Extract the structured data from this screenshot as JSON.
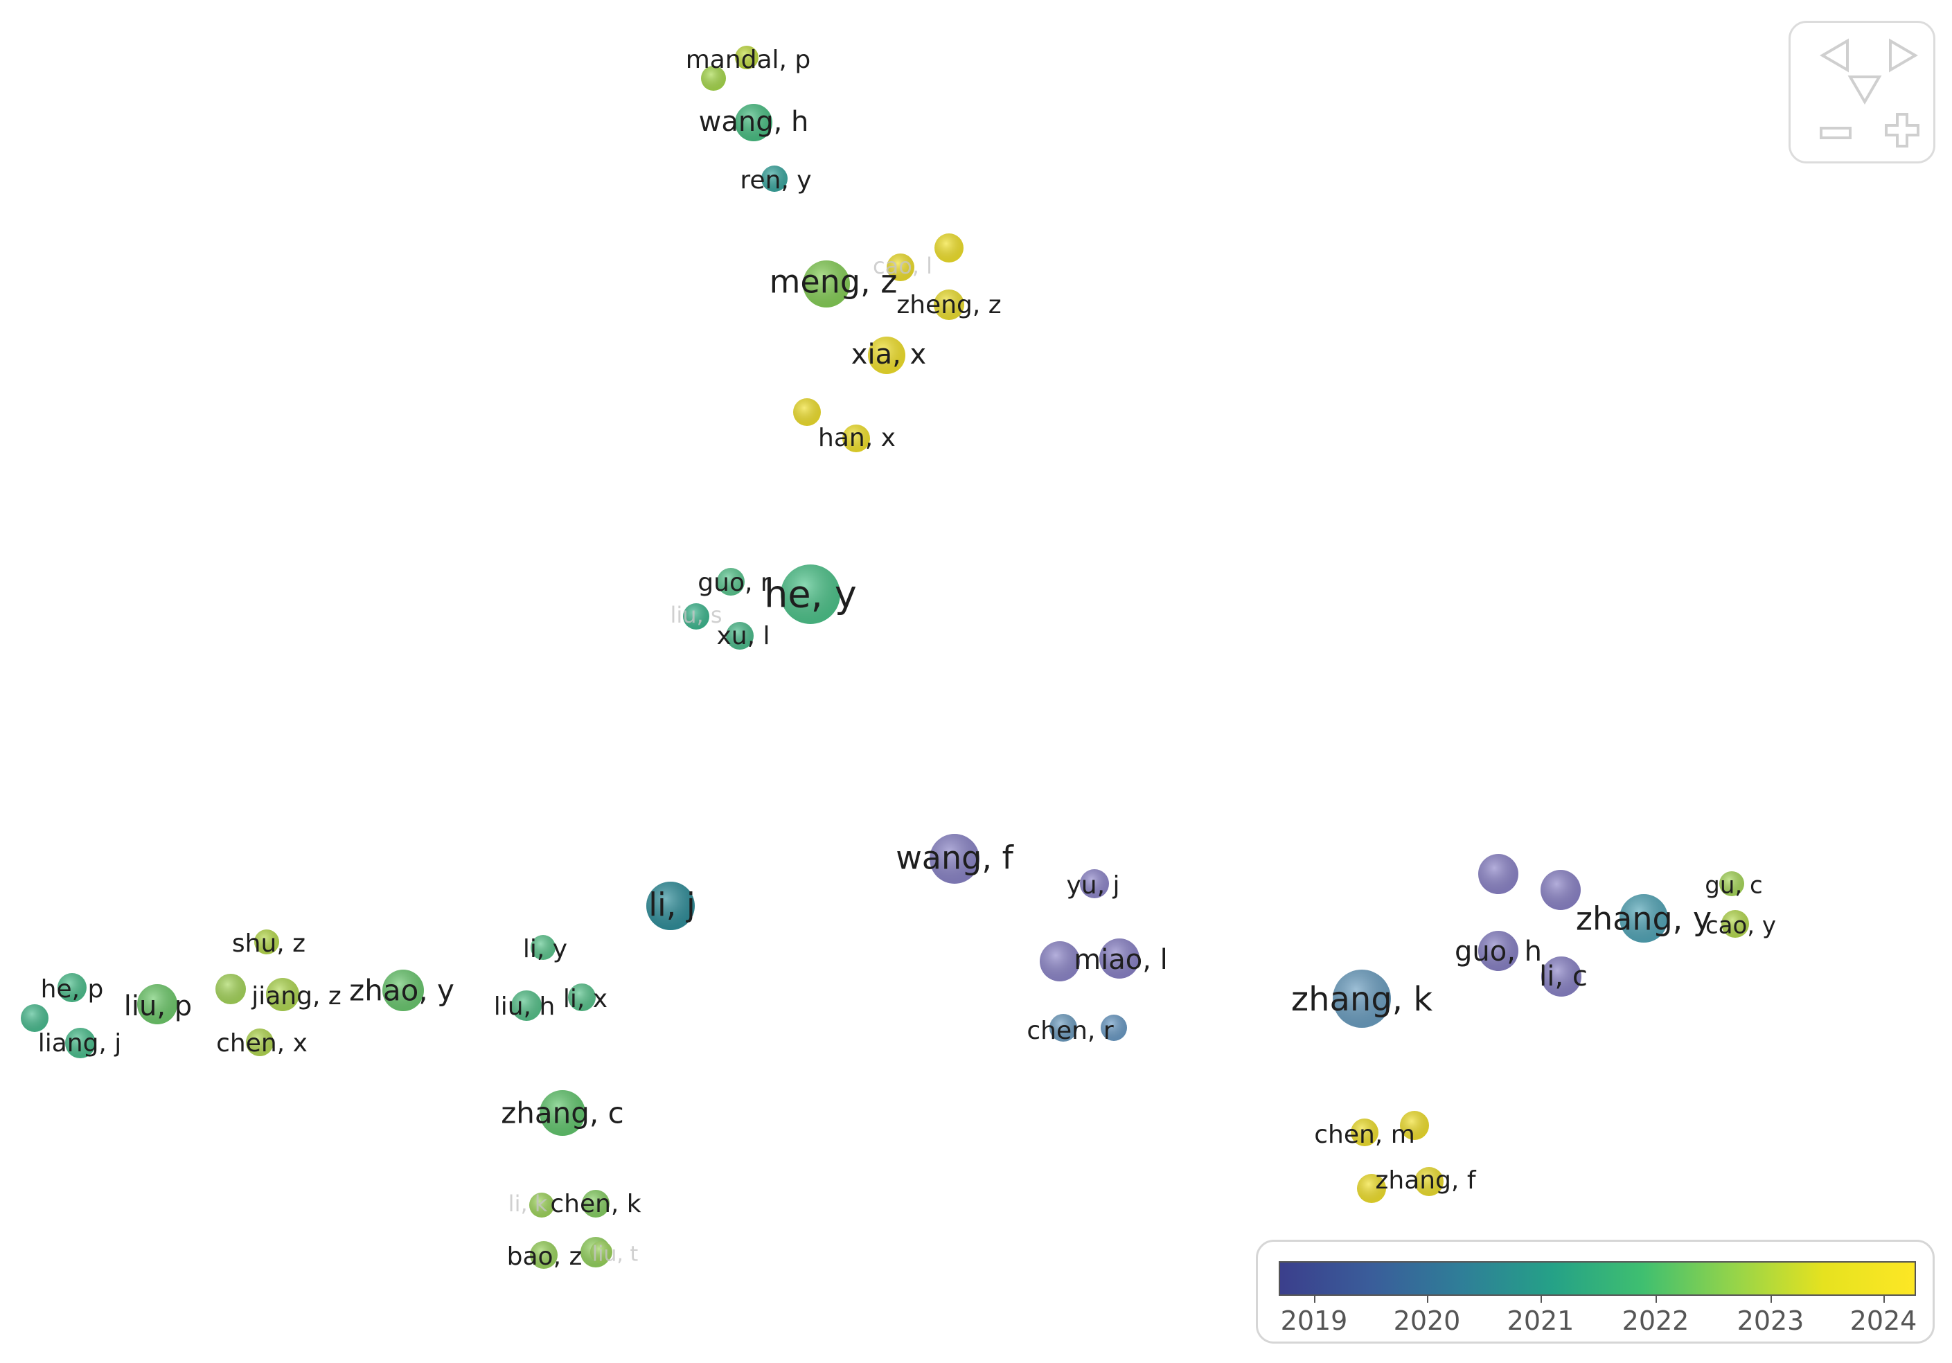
{
  "nodes": [
    {
      "id": "mandal_p",
      "label": "mandal, p",
      "color": "#c2dd3f"
    },
    {
      "id": "mandal_2",
      "label": "",
      "color": "#a8db4c"
    },
    {
      "id": "wang_h",
      "label": "wang, h",
      "color": "#47bf82"
    },
    {
      "id": "ren_y",
      "label": "ren, y",
      "color": "#3aa8a0"
    },
    {
      "id": "meng_z",
      "label": "meng, z",
      "color": "#86d057"
    },
    {
      "id": "cao_l",
      "label": "cao, l",
      "color": "#f0e02c",
      "faint": true
    },
    {
      "id": "y1",
      "label": "",
      "color": "#f3e32a"
    },
    {
      "id": "zheng_z",
      "label": "zheng, z",
      "color": "#efe12f"
    },
    {
      "id": "xia_x",
      "label": "xia, x",
      "color": "#f4e32a"
    },
    {
      "id": "y2",
      "label": "",
      "color": "#f1e12c"
    },
    {
      "id": "han_x",
      "label": "han, x",
      "color": "#f4e32a"
    },
    {
      "id": "he_y",
      "label": "he, y",
      "color": "#4dc58b"
    },
    {
      "id": "guo_r",
      "label": "guo, r",
      "color": "#5ac890"
    },
    {
      "id": "liu_s",
      "label": "liu, s",
      "color": "#3db88f",
      "faint": true
    },
    {
      "id": "xu_l",
      "label": "xu, l",
      "color": "#4bbd8c"
    },
    {
      "id": "li_j",
      "label": "li, j",
      "color": "#2e8e9a"
    },
    {
      "id": "wang_f",
      "label": "wang, f",
      "color": "#8a84c8"
    },
    {
      "id": "yu_j",
      "label": "yu, j",
      "color": "#8f87cc"
    },
    {
      "id": "miao_l_a",
      "label": "",
      "color": "#8d86ca"
    },
    {
      "id": "miao_l",
      "label": "miao, l",
      "color": "#8a82c8"
    },
    {
      "id": "chen_r_a",
      "label": "",
      "color": "#6e9ec2"
    },
    {
      "id": "chen_r",
      "label": "chen, r",
      "color": "#6a9bc6"
    },
    {
      "id": "zhang_k",
      "label": "zhang, k",
      "color": "#6b9fc2"
    },
    {
      "id": "p1",
      "label": "",
      "color": "#8c84c9"
    },
    {
      "id": "p2",
      "label": "",
      "color": "#8b83c8"
    },
    {
      "id": "guo_h",
      "label": "guo, h",
      "color": "#8881c6"
    },
    {
      "id": "li_c",
      "label": "li, c",
      "color": "#8a83c8"
    },
    {
      "id": "zhang_y",
      "label": "zhang, y",
      "color": "#52a6b8"
    },
    {
      "id": "gu_c",
      "label": "gu, c",
      "color": "#a8d95a"
    },
    {
      "id": "cao_y",
      "label": "cao, y",
      "color": "#b6db4f"
    },
    {
      "id": "chen_m",
      "label": "chen, m",
      "color": "#f1e12c"
    },
    {
      "id": "y3",
      "label": "",
      "color": "#f2e12c"
    },
    {
      "id": "zhang_f",
      "label": "zhang, f",
      "color": "#efe02e"
    },
    {
      "id": "y4",
      "label": "",
      "color": "#f3e22b"
    },
    {
      "id": "li_y",
      "label": "li, y",
      "color": "#5cc78e"
    },
    {
      "id": "liu_h",
      "label": "liu, h",
      "color": "#56c38b"
    },
    {
      "id": "li_x",
      "label": "li, x",
      "color": "#58c48c"
    },
    {
      "id": "zhao_y",
      "label": "zhao, y",
      "color": "#6ac96f"
    },
    {
      "id": "shu_z",
      "label": "shu, z",
      "color": "#b8dc4c"
    },
    {
      "id": "jiang_z",
      "label": "jiang, z",
      "color": "#b1da52"
    },
    {
      "id": "g1",
      "label": "",
      "color": "#a6d75a"
    },
    {
      "id": "chen_x",
      "label": "chen, x",
      "color": "#b4da52"
    },
    {
      "id": "liu_p",
      "label": "liu, p",
      "color": "#6ecb6b"
    },
    {
      "id": "he_p",
      "label": "he, p",
      "color": "#4cc08d"
    },
    {
      "id": "c1",
      "label": "",
      "color": "#49bd90"
    },
    {
      "id": "liang_j",
      "label": "liang, j",
      "color": "#4ac08e"
    },
    {
      "id": "zhang_c",
      "label": "zhang, c",
      "color": "#62c86e"
    },
    {
      "id": "li_k",
      "label": "li, k",
      "color": "#9fd65b",
      "faint": true
    },
    {
      "id": "chen_k",
      "label": "chen, k",
      "color": "#86d062"
    },
    {
      "id": "bao_z",
      "label": "bao, z",
      "color": "#9bd55e"
    },
    {
      "id": "g2",
      "label": "",
      "color": "#93d35d"
    },
    {
      "id": "liu_t",
      "label": "liu, t",
      "color": "#9dd55c",
      "faint": true
    }
  ],
  "edges": [
    [
      "mandal_2",
      "wang_h"
    ],
    [
      "mandal_p",
      "wang_h"
    ],
    [
      "wang_h",
      "ren_y"
    ],
    [
      "wang_h",
      "meng_z"
    ],
    [
      "ren_y",
      "meng_z"
    ],
    [
      "meng_z",
      "cao_l"
    ],
    [
      "meng_z",
      "y1"
    ],
    [
      "meng_z",
      "zheng_z"
    ],
    [
      "meng_z",
      "xia_x"
    ],
    [
      "meng_z",
      "y2"
    ],
    [
      "meng_z",
      "han_x"
    ],
    [
      "cao_l",
      "y1"
    ],
    [
      "y1",
      "zheng_z"
    ],
    [
      "zheng_z",
      "xia_x"
    ],
    [
      "xia_x",
      "y2"
    ],
    [
      "xia_x",
      "han_x"
    ],
    [
      "y2",
      "han_x"
    ],
    [
      "cao_l",
      "xia_x"
    ],
    [
      "meng_z",
      "he_y"
    ],
    [
      "xia_x",
      "he_y"
    ],
    [
      "han_x",
      "he_y"
    ],
    [
      "y2",
      "he_y"
    ],
    [
      "he_y",
      "guo_r"
    ],
    [
      "he_y",
      "xu_l"
    ],
    [
      "guo_r",
      "liu_s"
    ],
    [
      "liu_s",
      "xu_l"
    ],
    [
      "guo_r",
      "xu_l"
    ],
    [
      "xu_l",
      "li_j"
    ],
    [
      "he_y",
      "wang_f"
    ],
    [
      "li_j",
      "wang_f"
    ],
    [
      "li_j",
      "zhang_k"
    ],
    [
      "wang_f",
      "yu_j"
    ],
    [
      "wang_f",
      "miao_l_a"
    ],
    [
      "wang_f",
      "miao_l"
    ],
    [
      "wang_f",
      "zhang_k"
    ],
    [
      "yu_j",
      "miao_l_a"
    ],
    [
      "yu_j",
      "miao_l"
    ],
    [
      "miao_l_a",
      "miao_l"
    ],
    [
      "miao_l_a",
      "chen_r_a"
    ],
    [
      "miao_l",
      "chen_r"
    ],
    [
      "chen_r_a",
      "chen_r"
    ],
    [
      "miao_l",
      "zhang_k"
    ],
    [
      "yu_j",
      "zhang_k"
    ],
    [
      "chen_r",
      "zhang_k"
    ],
    [
      "zhang_k",
      "p1"
    ],
    [
      "zhang_k",
      "p2"
    ],
    [
      "zhang_k",
      "guo_h"
    ],
    [
      "zhang_k",
      "li_c"
    ],
    [
      "zhang_k",
      "zhang_y"
    ],
    [
      "p1",
      "p2"
    ],
    [
      "p1",
      "guo_h"
    ],
    [
      "p2",
      "guo_h"
    ],
    [
      "p2",
      "li_c"
    ],
    [
      "guo_h",
      "li_c"
    ],
    [
      "p1",
      "zhang_y"
    ],
    [
      "p2",
      "zhang_y"
    ],
    [
      "li_c",
      "zhang_y"
    ],
    [
      "zhang_y",
      "gu_c"
    ],
    [
      "zhang_y",
      "cao_y"
    ],
    [
      "gu_c",
      "cao_y"
    ],
    [
      "zhang_k",
      "chen_m"
    ],
    [
      "zhang_k",
      "y3"
    ],
    [
      "zhang_k",
      "zhang_f"
    ],
    [
      "zhang_k",
      "y4"
    ],
    [
      "chen_m",
      "y3"
    ],
    [
      "y3",
      "zhang_f"
    ],
    [
      "chen_m",
      "y4"
    ],
    [
      "zhang_f",
      "y4"
    ],
    [
      "li_j",
      "li_y"
    ],
    [
      "li_j",
      "liu_h"
    ],
    [
      "li_j",
      "li_x"
    ],
    [
      "li_j",
      "zhang_c"
    ],
    [
      "li_y",
      "liu_h"
    ],
    [
      "li_y",
      "li_x"
    ],
    [
      "liu_h",
      "li_x"
    ],
    [
      "zhao_y",
      "li_y"
    ],
    [
      "zhao_y",
      "liu_h"
    ],
    [
      "zhao_y",
      "li_x"
    ],
    [
      "liu_h",
      "zhang_c"
    ],
    [
      "li_x",
      "zhang_c"
    ],
    [
      "zhao_y",
      "shu_z"
    ],
    [
      "zhao_y",
      "jiang_z"
    ],
    [
      "zhao_y",
      "chen_x"
    ],
    [
      "zhao_y",
      "g1"
    ],
    [
      "shu_z",
      "jiang_z"
    ],
    [
      "jiang_z",
      "chen_x"
    ],
    [
      "g1",
      "shu_z"
    ],
    [
      "g1",
      "jiang_z"
    ],
    [
      "g1",
      "chen_x"
    ],
    [
      "liu_p",
      "g1"
    ],
    [
      "liu_p",
      "shu_z"
    ],
    [
      "liu_p",
      "chen_x"
    ],
    [
      "liu_p",
      "jiang_z"
    ],
    [
      "liu_p",
      "he_p"
    ],
    [
      "liu_p",
      "c1"
    ],
    [
      "liu_p",
      "liang_j"
    ],
    [
      "he_p",
      "c1"
    ],
    [
      "c1",
      "liang_j"
    ],
    [
      "he_p",
      "liang_j"
    ],
    [
      "zhang_c",
      "li_k"
    ],
    [
      "zhang_c",
      "chen_k"
    ],
    [
      "zhang_c",
      "bao_z"
    ],
    [
      "zhang_c",
      "g2"
    ],
    [
      "li_k",
      "chen_k"
    ],
    [
      "li_k",
      "bao_z"
    ],
    [
      "chen_k",
      "g2"
    ],
    [
      "bao_z",
      "g2"
    ],
    [
      "bao_z",
      "liu_t"
    ],
    [
      "g2",
      "liu_t"
    ]
  ],
  "colorbar": {
    "ticks": [
      "2019",
      "2020",
      "2021",
      "2022",
      "2023",
      "2024"
    ]
  },
  "nav": {
    "buttons": [
      {
        "id": "pan-left",
        "icon": "triangle-left-icon"
      },
      {
        "id": "pan-right",
        "icon": "triangle-right-icon"
      },
      {
        "id": "pan-down",
        "icon": "triangle-down-icon"
      },
      {
        "id": "zoom-out",
        "icon": "minus-icon"
      },
      {
        "id": "zoom-in",
        "icon": "plus-icon"
      }
    ]
  }
}
